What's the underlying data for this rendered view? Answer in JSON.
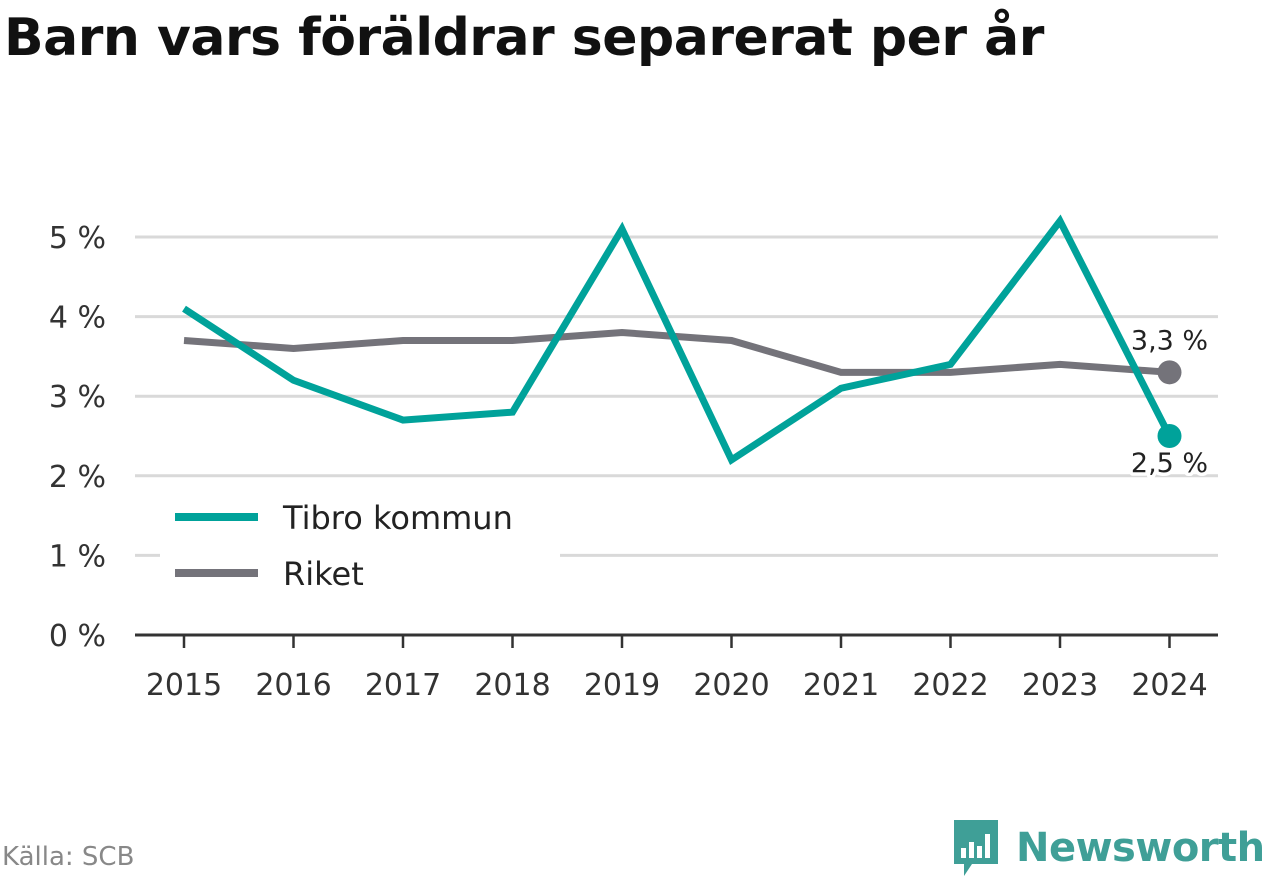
{
  "title": "Barn vars föräldrar separerat per år",
  "source": "Källa: SCB",
  "brand": {
    "name": "Newsworthy",
    "icon": "newsworthy-logo-icon"
  },
  "colors": {
    "tibro": "#00a29a",
    "riket": "#74737a",
    "grid": "#d9d9d9",
    "axis": "#333333"
  },
  "chart_data": {
    "type": "line",
    "title": "Barn vars föräldrar separerat per år",
    "xlabel": "",
    "ylabel": "",
    "x": [
      "2015",
      "2016",
      "2017",
      "2018",
      "2019",
      "2020",
      "2021",
      "2022",
      "2023",
      "2024"
    ],
    "ylim": [
      0,
      5
    ],
    "yticks": [
      0,
      1,
      2,
      3,
      4,
      5
    ],
    "ytick_labels": [
      "0 %",
      "1 %",
      "2 %",
      "3 %",
      "4 %",
      "5 %"
    ],
    "grid": true,
    "legend_position": "bottom-left",
    "series": [
      {
        "name": "Tibro kommun",
        "color": "#00a29a",
        "values": [
          4.1,
          3.2,
          2.7,
          2.8,
          5.1,
          2.2,
          3.1,
          3.4,
          5.2,
          2.5
        ],
        "end_label": "2,5 %"
      },
      {
        "name": "Riket",
        "color": "#74737a",
        "values": [
          3.7,
          3.6,
          3.7,
          3.7,
          3.8,
          3.7,
          3.3,
          3.3,
          3.4,
          3.3
        ],
        "end_label": "3,3 %"
      }
    ]
  }
}
